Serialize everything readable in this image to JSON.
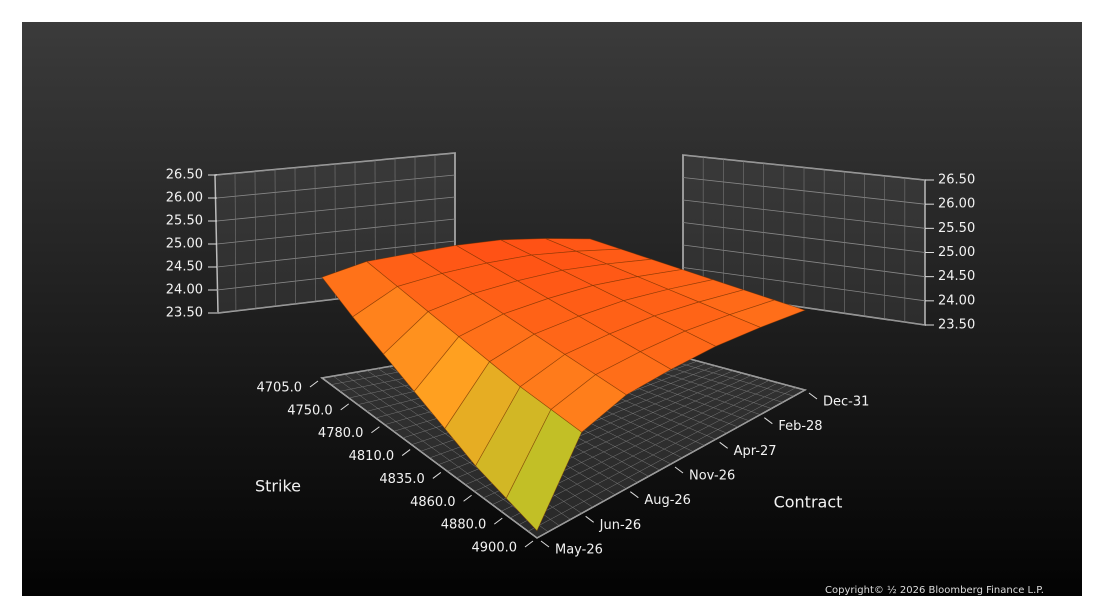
{
  "chart_data": {
    "type": "surface",
    "x_label": "Strike",
    "y_label": "Contract",
    "strikes": [
      "4705.0",
      "4750.0",
      "4780.0",
      "4810.0",
      "4835.0",
      "4860.0",
      "4880.0",
      "4900.0"
    ],
    "contracts": [
      "May-26",
      "Jun-26",
      "Aug-26",
      "Nov-26",
      "Apr-27",
      "Feb-28",
      "Dec-31"
    ],
    "values": [
      [
        25.6,
        25.85,
        25.95,
        26.05,
        26.1,
        26.05,
        25.95
      ],
      [
        25.25,
        25.75,
        25.9,
        26.0,
        26.05,
        26.0,
        25.9
      ],
      [
        24.95,
        25.65,
        25.85,
        25.95,
        26.0,
        25.95,
        25.85
      ],
      [
        24.65,
        25.55,
        25.8,
        25.9,
        25.95,
        25.9,
        25.8
      ],
      [
        24.35,
        25.45,
        25.75,
        25.85,
        25.9,
        25.85,
        25.75
      ],
      [
        24.05,
        25.35,
        25.7,
        25.8,
        25.85,
        25.8,
        25.7
      ],
      [
        23.85,
        25.3,
        25.65,
        25.75,
        25.8,
        25.75,
        25.65
      ],
      [
        23.65,
        25.25,
        25.6,
        25.7,
        25.75,
        25.7,
        25.6
      ]
    ],
    "zlim": [
      23.5,
      26.5
    ],
    "zticks": [
      {
        "value": 23.5,
        "label": "23.50"
      },
      {
        "value": 24,
        "label": "24.00"
      },
      {
        "value": 24.5,
        "label": "24.50"
      },
      {
        "value": 25,
        "label": "25.00"
      },
      {
        "value": 25.5,
        "label": "25.50"
      },
      {
        "value": 26,
        "label": "26.00"
      },
      {
        "value": 26.5,
        "label": "26.50"
      }
    ],
    "colors": [
      "#44ff33",
      "#ffa020",
      "#ff3010"
    ]
  },
  "copyright": "Copyright© ½ 2026 Bloomberg Finance L.P."
}
